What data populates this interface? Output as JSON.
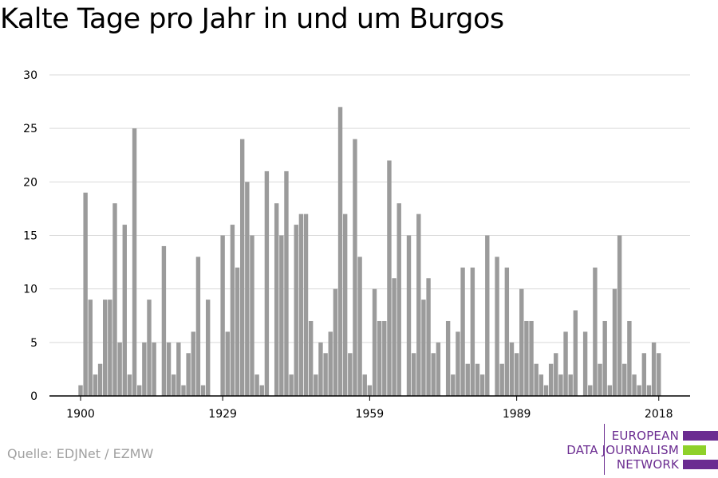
{
  "title": "Kalte Tage pro Jahr in und um Burgos",
  "source": "Quelle: EDJNet / EZMW",
  "logo": {
    "lines": [
      "EUROPEAN",
      "DATA JOURNALISM",
      "NETWORK"
    ],
    "colors": {
      "primary": "#6b2c91",
      "accent": "#8fd12a"
    }
  },
  "chart_data": {
    "type": "bar",
    "bar_color": "#9b9b9b",
    "grid_color": "#d9d9d9",
    "ylim": [
      0,
      30
    ],
    "yticks": [
      0,
      5,
      10,
      15,
      20,
      25,
      30
    ],
    "xticks": [
      1900,
      1929,
      1959,
      1989,
      2018
    ],
    "x": [
      1900,
      1901,
      1902,
      1903,
      1904,
      1905,
      1906,
      1907,
      1908,
      1909,
      1910,
      1911,
      1912,
      1913,
      1914,
      1915,
      1916,
      1917,
      1918,
      1919,
      1920,
      1921,
      1922,
      1923,
      1924,
      1925,
      1926,
      1927,
      1928,
      1929,
      1930,
      1931,
      1932,
      1933,
      1934,
      1935,
      1936,
      1937,
      1938,
      1939,
      1940,
      1941,
      1942,
      1943,
      1944,
      1945,
      1946,
      1947,
      1948,
      1949,
      1950,
      1951,
      1952,
      1953,
      1954,
      1955,
      1956,
      1957,
      1958,
      1959,
      1960,
      1961,
      1962,
      1963,
      1964,
      1965,
      1966,
      1967,
      1968,
      1969,
      1970,
      1971,
      1972,
      1973,
      1974,
      1975,
      1976,
      1977,
      1978,
      1979,
      1980,
      1981,
      1982,
      1983,
      1984,
      1985,
      1986,
      1987,
      1988,
      1989,
      1990,
      1991,
      1992,
      1993,
      1994,
      1995,
      1996,
      1997,
      1998,
      1999,
      2000,
      2001,
      2002,
      2003,
      2004,
      2005,
      2006,
      2007,
      2008,
      2009,
      2010,
      2011,
      2012,
      2013,
      2014,
      2015,
      2016,
      2017,
      2018
    ],
    "values": [
      1,
      19,
      9,
      2,
      3,
      9,
      9,
      18,
      5,
      16,
      2,
      25,
      1,
      5,
      9,
      5,
      0,
      14,
      5,
      2,
      5,
      1,
      4,
      6,
      13,
      1,
      9,
      0,
      0,
      15,
      6,
      16,
      12,
      24,
      20,
      15,
      2,
      1,
      21,
      0,
      18,
      15,
      21,
      2,
      16,
      17,
      17,
      7,
      2,
      5,
      4,
      6,
      10,
      27,
      17,
      4,
      24,
      13,
      2,
      1,
      10,
      7,
      7,
      22,
      11,
      18,
      0,
      15,
      4,
      17,
      9,
      11,
      4,
      5,
      0,
      7,
      2,
      6,
      12,
      3,
      12,
      3,
      2,
      15,
      0,
      13,
      3,
      12,
      5,
      4,
      10,
      7,
      7,
      3,
      2,
      1,
      3,
      4,
      2,
      6,
      2,
      8,
      0,
      6,
      1,
      12,
      3,
      7,
      1,
      10,
      15,
      3,
      7,
      2,
      1,
      4,
      1,
      5,
      4
    ]
  }
}
